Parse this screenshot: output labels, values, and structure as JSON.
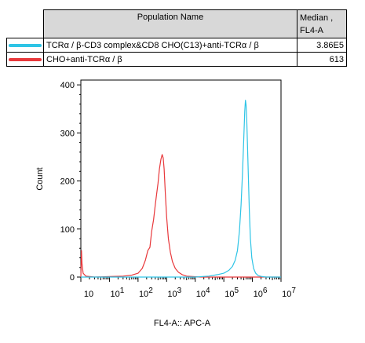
{
  "legend": {
    "header_name": "Population Name",
    "header_median_1": "Median ,",
    "header_median_2": "FL4-A",
    "rows": [
      {
        "name": "TCRα / β-CD3 complex&CD8 CHO(C13)+anti-TCRα / β",
        "median": "3.86E5",
        "color": "#2ec4e6"
      },
      {
        "name": "CHO+anti-TCRα / β",
        "median": "613",
        "color": "#e8383b"
      }
    ]
  },
  "chart_data": {
    "type": "line",
    "title": "",
    "xlabel": "FL4-A:: APC-A",
    "ylabel": "Count",
    "x_scale": "log",
    "xlim": [
      1,
      10000000
    ],
    "ylim": [
      0,
      410
    ],
    "y_ticks": [
      "0",
      "100",
      "200",
      "300",
      "400"
    ],
    "x_ticks": [
      {
        "base": "10",
        "exp": "1",
        "value": 10
      },
      {
        "base": "10",
        "exp": "2",
        "value": 100
      },
      {
        "base": "10",
        "exp": "3",
        "value": 1000
      },
      {
        "base": "10",
        "exp": "4",
        "value": 10000
      },
      {
        "base": "10",
        "exp": "5",
        "value": 100000
      },
      {
        "base": "10",
        "exp": "6",
        "value": 1000000
      },
      {
        "base": "10",
        "exp": "7",
        "value": 10000000
      }
    ],
    "x_tick_extra": {
      "base": "10",
      "exp": "",
      "value": 1
    },
    "series": [
      {
        "name": "CHO+anti-TCRα / β",
        "color": "#e8383b",
        "points": [
          [
            1,
            0
          ],
          [
            1.05,
            55
          ],
          [
            1.1,
            28
          ],
          [
            1.2,
            8
          ],
          [
            1.5,
            2
          ],
          [
            3,
            0
          ],
          [
            10,
            1
          ],
          [
            30,
            2
          ],
          [
            60,
            4
          ],
          [
            100,
            8
          ],
          [
            140,
            18
          ],
          [
            180,
            35
          ],
          [
            220,
            55
          ],
          [
            260,
            62
          ],
          [
            300,
            95
          ],
          [
            350,
            120
          ],
          [
            400,
            150
          ],
          [
            450,
            175
          ],
          [
            500,
            195
          ],
          [
            560,
            225
          ],
          [
            630,
            245
          ],
          [
            700,
            255
          ],
          [
            760,
            248
          ],
          [
            820,
            225
          ],
          [
            900,
            175
          ],
          [
            1000,
            125
          ],
          [
            1150,
            80
          ],
          [
            1350,
            52
          ],
          [
            1600,
            32
          ],
          [
            2000,
            18
          ],
          [
            2600,
            10
          ],
          [
            3500,
            5
          ],
          [
            5000,
            2
          ],
          [
            8000,
            1
          ],
          [
            15000,
            0
          ],
          [
            10000000,
            0
          ]
        ]
      },
      {
        "name": "TCRα / β-CD3 complex&CD8 CHO(C13)+anti-TCRα / β",
        "color": "#2ec4e6",
        "points": [
          [
            1,
            0
          ],
          [
            10000,
            0
          ],
          [
            30000,
            2
          ],
          [
            60000,
            5
          ],
          [
            100000,
            8
          ],
          [
            150000,
            14
          ],
          [
            200000,
            22
          ],
          [
            250000,
            35
          ],
          [
            300000,
            55
          ],
          [
            350000,
            95
          ],
          [
            400000,
            150
          ],
          [
            450000,
            215
          ],
          [
            500000,
            290
          ],
          [
            540000,
            345
          ],
          [
            570000,
            368
          ],
          [
            600000,
            358
          ],
          [
            630000,
            330
          ],
          [
            670000,
            280
          ],
          [
            720000,
            210
          ],
          [
            780000,
            140
          ],
          [
            850000,
            80
          ],
          [
            950000,
            40
          ],
          [
            1100000,
            18
          ],
          [
            1300000,
            8
          ],
          [
            1600000,
            3
          ],
          [
            2200000,
            1
          ],
          [
            3000000,
            0
          ],
          [
            10000000,
            0
          ]
        ]
      }
    ]
  }
}
